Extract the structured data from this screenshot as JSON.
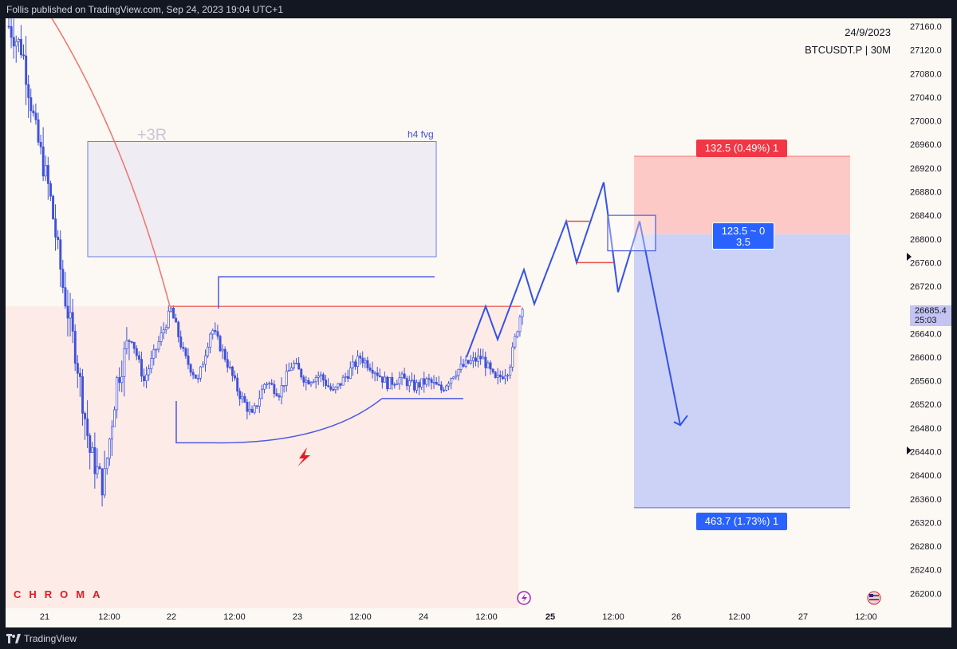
{
  "header": {
    "published": "Follis published on TradingView.com, Sep 24, 2023 19:04 UTC+1"
  },
  "footer": {
    "brand": "TradingView"
  },
  "info": {
    "date": "24/9/2023",
    "symbol": "BTCUSDT.P | 30M"
  },
  "watermark": "CHROMA",
  "annotations": {
    "fvg_label": "h4 fvg",
    "r_label": "+3R"
  },
  "position": {
    "stop_label": "132.5 (0.49%) 1",
    "center_line1": "123.5 ~ 0",
    "center_line2": "3.5",
    "target_label": "463.7 (1.73%) 1"
  },
  "price_tag": {
    "price": "26685.4",
    "timer": "25:03"
  },
  "colors": {
    "background": "#fcf8f3",
    "candle": "#3f51d8",
    "stop_zone": "#fcc9c6",
    "target_zone": "#cbd2f6",
    "red_line": "#f0736e",
    "red_badge": "#f23645",
    "blue_badge": "#2962ff"
  },
  "chart_data": {
    "type": "candlestick",
    "symbol": "BTCUSDT.P",
    "timeframe": "30M",
    "y_axis": {
      "ticks": [
        27160.0,
        27120.0,
        27080.0,
        27040.0,
        27000.0,
        26960.0,
        26920.0,
        26880.0,
        26840.0,
        26800.0,
        26760.0,
        26720.0,
        26680.0,
        26640.0,
        26600.0,
        26560.0,
        26520.0,
        26480.0,
        26440.0,
        26400.0,
        26360.0,
        26320.0,
        26280.0,
        26240.0,
        26200.0
      ],
      "range": [
        26180,
        27180
      ]
    },
    "x_axis": {
      "ticks": [
        "21",
        "12:00",
        "22",
        "12:00",
        "23",
        "12:00",
        "24",
        "12:00",
        "25",
        "12:00",
        "26",
        "12:00",
        "27",
        "12:00"
      ],
      "bold_ticks": [
        "25"
      ]
    },
    "price_path": [
      27160,
      27120,
      26980,
      26880,
      26720,
      26600,
      26440,
      26380,
      26560,
      26640,
      26560,
      26620,
      26680,
      26600,
      26560,
      26650,
      26600,
      26540,
      26500,
      26560,
      26540,
      26590,
      26560,
      26570,
      26540,
      26570,
      26600,
      26580,
      26555,
      26565,
      26550,
      26560,
      26545,
      26575,
      26590,
      26600,
      26560,
      26580,
      26690
    ],
    "levels": {
      "fvg_top": 26965,
      "fvg_bottom": 26770,
      "swing_high": 26736,
      "red_level": 26686,
      "equal_lows": 26530,
      "curve_low": 26455,
      "stop": 26940,
      "entry": 26808,
      "target": 26345
    },
    "projection": [
      26600,
      26686,
      26630,
      26748,
      26690,
      26830,
      26760,
      26896,
      26710,
      26830,
      26485
    ]
  }
}
